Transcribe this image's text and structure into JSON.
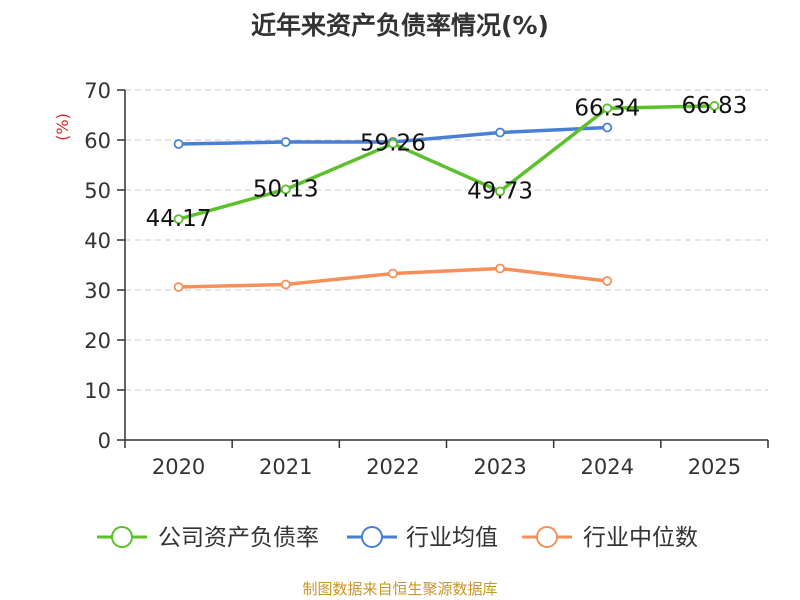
{
  "chart_data": {
    "type": "line",
    "title": "近年来资产负债率情况(%)",
    "ylabel": "(%)",
    "xlabel": "",
    "categories": [
      "2020",
      "2021",
      "2022",
      "2023",
      "2024",
      "2025"
    ],
    "ylim": [
      0,
      70
    ],
    "yticks": [
      0,
      10,
      20,
      30,
      40,
      50,
      60,
      70
    ],
    "grid": true,
    "legend_position": "bottom",
    "series": [
      {
        "name": "公司资产负债率",
        "color": "#5cc02b",
        "values": [
          44.17,
          50.13,
          59.26,
          49.73,
          66.34,
          66.83
        ],
        "data_labels": [
          "44.17",
          "50.13",
          "59.26",
          "49.73",
          "66.34",
          "66.83"
        ]
      },
      {
        "name": "行业均值",
        "color": "#4a7fd8",
        "values": [
          59.2,
          59.6,
          59.6,
          61.5,
          62.5,
          null
        ]
      },
      {
        "name": "行业中位数",
        "color": "#f5905a",
        "values": [
          30.6,
          31.1,
          33.3,
          34.3,
          31.8,
          null
        ]
      }
    ]
  },
  "footer": {
    "source": "制图数据来自恒生聚源数据库"
  }
}
